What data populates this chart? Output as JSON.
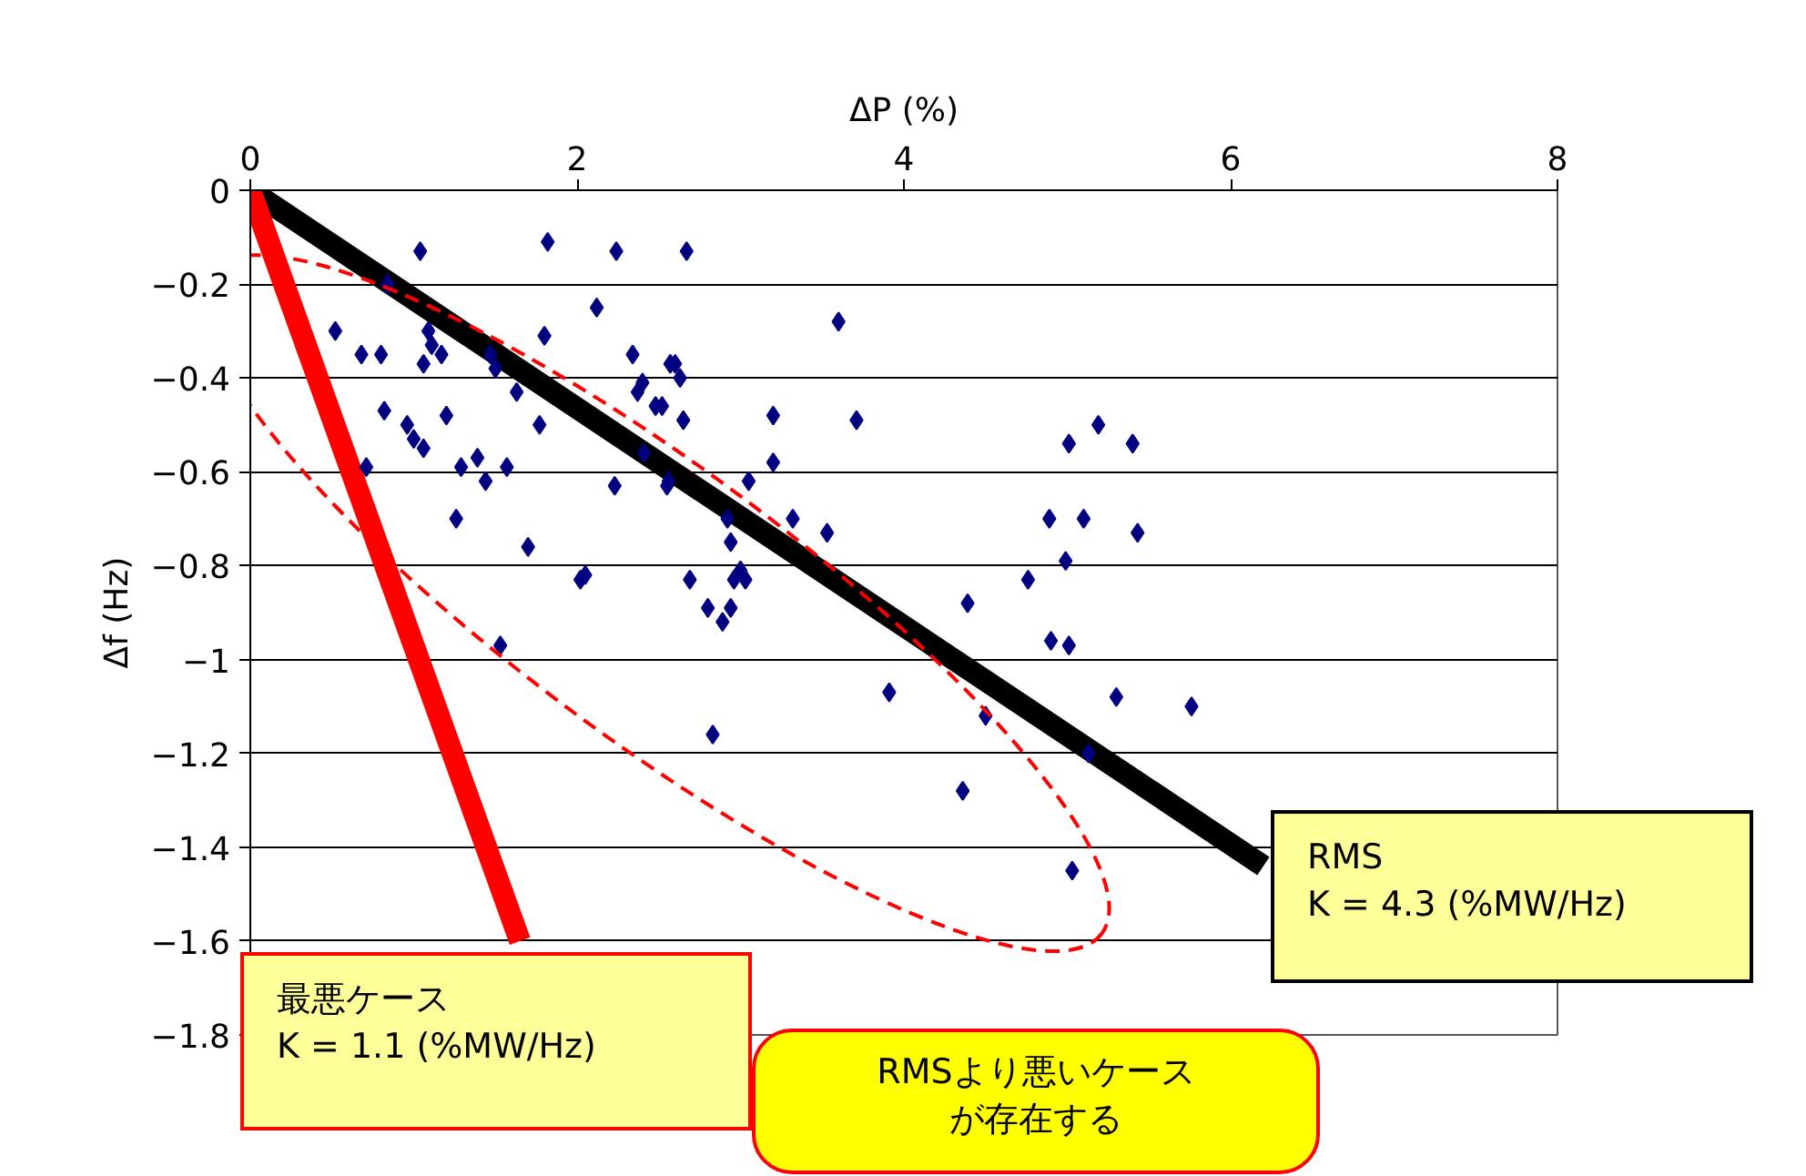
{
  "chart_data": {
    "type": "scatter",
    "xlabel": "ΔP (%)",
    "ylabel": "Δf (Hz)",
    "xlim": [
      0,
      8
    ],
    "xticks": [
      0,
      2,
      4,
      6,
      8
    ],
    "ylim": [
      -1.8,
      0
    ],
    "yticks": [
      0,
      {
        "value": -0.2,
        "label": "−0.2"
      },
      {
        "value": -0.4,
        "label": "−0.4"
      },
      {
        "value": -0.6,
        "label": "−0.6"
      },
      {
        "value": -0.8,
        "label": "−0.8"
      },
      {
        "value": -1,
        "label": "−1"
      },
      {
        "value": -1.2,
        "label": "−1.2"
      },
      {
        "value": -1.4,
        "label": "−1.4"
      },
      {
        "value": -1.6,
        "label": "−1.6"
      },
      {
        "value": -1.8,
        "label": "−1.8"
      }
    ],
    "grid": "y",
    "series": [
      {
        "color": "#000080",
        "marker": "diamond",
        "x": [
          1.04,
          1.82,
          2.24,
          0.84,
          0.52,
          0.68,
          0.8,
          1.09,
          1.11,
          1.17,
          1.06,
          1.47,
          1.5,
          1.63,
          1.8,
          2.12,
          2.34,
          2.4,
          2.37,
          2.48,
          2.41,
          2.57,
          0.82,
          0.96,
          1.0,
          1.06,
          1.2,
          1.39,
          1.29,
          1.44,
          1.57,
          1.77,
          2.23,
          2.55,
          0.71,
          1.26,
          1.7,
          2.02,
          2.05,
          1.53,
          2.67,
          3.6,
          2.6,
          2.63,
          2.52,
          2.65,
          3.2,
          3.71,
          3.2,
          2.56,
          3.05,
          2.92,
          2.94,
          3.32,
          3.53,
          3.0,
          2.96,
          3.03,
          2.69,
          2.8,
          2.94,
          2.89,
          2.83,
          3.91,
          4.39,
          4.5,
          4.36,
          5.19,
          5.01,
          5.4,
          4.89,
          5.1,
          5.43,
          4.99,
          4.76,
          4.9,
          5.01,
          5.3,
          5.76,
          5.13,
          5.03
        ],
        "values": [
          -0.13,
          -0.11,
          -0.13,
          -0.2,
          -0.3,
          -0.35,
          -0.35,
          -0.3,
          -0.33,
          -0.35,
          -0.37,
          -0.35,
          -0.38,
          -0.43,
          -0.31,
          -0.25,
          -0.35,
          -0.41,
          -0.43,
          -0.46,
          -0.56,
          -0.37,
          -0.47,
          -0.5,
          -0.53,
          -0.55,
          -0.48,
          -0.57,
          -0.59,
          -0.62,
          -0.59,
          -0.5,
          -0.63,
          -0.63,
          -0.59,
          -0.7,
          -0.76,
          -0.83,
          -0.82,
          -0.97,
          -0.13,
          -0.28,
          -0.37,
          -0.4,
          -0.46,
          -0.49,
          -0.48,
          -0.49,
          -0.58,
          -0.62,
          -0.62,
          -0.7,
          -0.75,
          -0.7,
          -0.73,
          -0.81,
          -0.83,
          -0.83,
          -0.83,
          -0.89,
          -0.89,
          -0.92,
          -1.16,
          -1.07,
          -0.88,
          -1.12,
          -1.28,
          -0.5,
          -0.54,
          -0.54,
          -0.7,
          -0.7,
          -0.73,
          -0.79,
          -0.83,
          -0.96,
          -0.97,
          -1.08,
          -1.1,
          -1.2,
          -1.45
        ]
      },
      {
        "type": "line",
        "color": "#000000",
        "x": [
          0,
          6.2
        ],
        "values": [
          0,
          -1.44
        ]
      },
      {
        "type": "line",
        "color": "#ff0000",
        "x": [
          0,
          1.65
        ],
        "values": [
          0,
          -1.6
        ]
      }
    ],
    "annotations": [
      {
        "text": "最悪ケース\nK = 1.1 (%MW/Hz)",
        "x": 1.65,
        "y": -1.6
      },
      {
        "text": "RMS\nK = 4.3 (%MW/Hz)",
        "x": 6.2,
        "y": -1.44
      },
      "RMSより悪いケースが存在する"
    ]
  }
}
